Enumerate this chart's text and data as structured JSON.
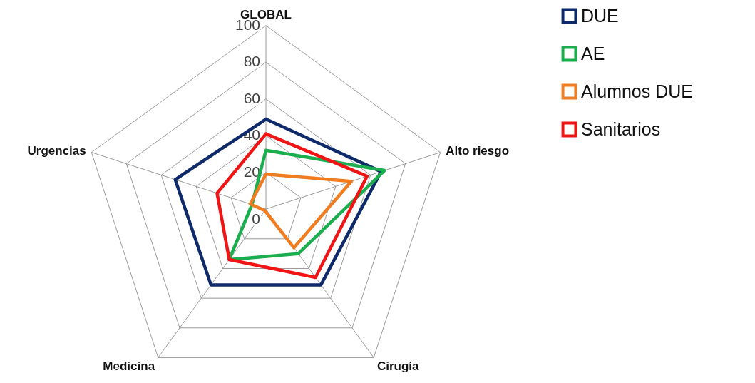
{
  "chart_data": {
    "type": "radar",
    "categories": [
      "GLOBAL",
      "Alto riesgo",
      "Cirugía",
      "Medicina",
      "Urgencias"
    ],
    "series": [
      {
        "name": "DUE",
        "color": "#0e2a6a",
        "values": [
          49,
          66,
          51,
          51,
          52
        ]
      },
      {
        "name": "AE",
        "color": "#1aae4e",
        "values": [
          32,
          68,
          30,
          34,
          8
        ]
      },
      {
        "name": "Alumnos DUE",
        "color": "#f07d22",
        "values": [
          19,
          49,
          26,
          1,
          9
        ]
      },
      {
        "name": "Sanitarios",
        "color": "#f01414",
        "values": [
          41,
          58,
          46,
          34,
          28
        ]
      }
    ],
    "ylim": [
      0,
      100
    ],
    "yticks": [
      0,
      20,
      40,
      60,
      80,
      100
    ],
    "grid": true,
    "legend": "right"
  }
}
